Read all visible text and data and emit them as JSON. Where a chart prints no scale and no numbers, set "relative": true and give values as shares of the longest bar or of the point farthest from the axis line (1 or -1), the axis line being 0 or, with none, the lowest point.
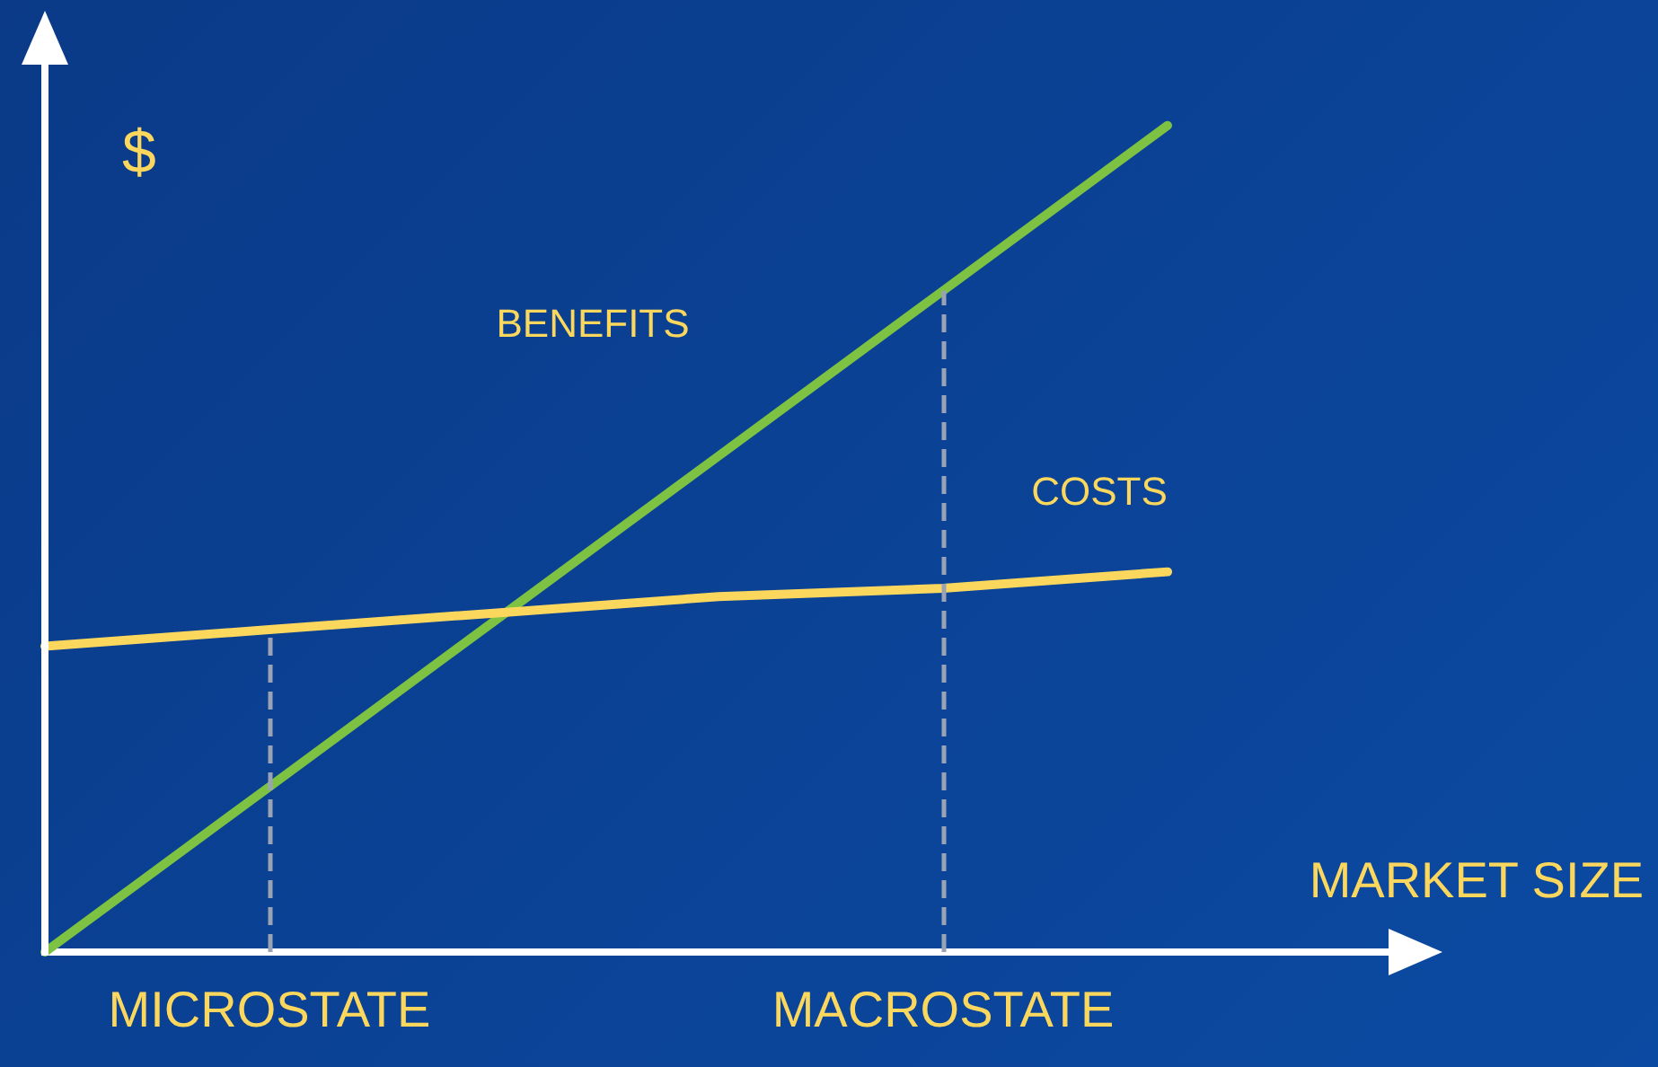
{
  "chart_data": {
    "type": "line",
    "relative": true,
    "xlabel": "MARKET SIZE",
    "ylabel": "$",
    "categories": [
      null,
      "MICROSTATE",
      null,
      null,
      "MACROSTATE",
      null,
      null
    ],
    "series": [
      {
        "name": "BENEFITS",
        "color": "#7dc243",
        "values": [
          0,
          0.2,
          0.4,
          0.6,
          0.8,
          1,
          null
        ]
      },
      {
        "name": "COSTS",
        "color": "#fbd85d",
        "values": [
          0.37,
          0.39,
          0.41,
          0.43,
          0.44,
          0.46,
          null
        ]
      }
    ],
    "ref_lines": [
      {
        "axis": "x",
        "value": "MICROSTATE",
        "color": "#9aa3b5",
        "line_style": "dashed"
      },
      {
        "axis": "x",
        "value": "MACROSTATE",
        "color": "#9aa3b5",
        "line_style": "dashed"
      }
    ],
    "grid": false,
    "legend": false,
    "marker": "none",
    "line_style": "solid"
  }
}
